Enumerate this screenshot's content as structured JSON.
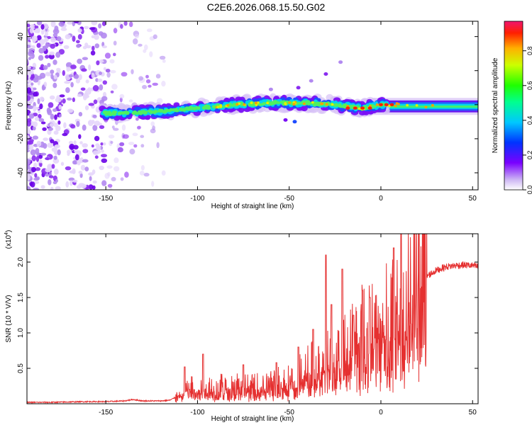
{
  "title": "C2E6.2026.068.15.50.G02",
  "chart_data": [
    {
      "type": "heatmap",
      "title": "C2E6.2026.068.15.50.G02",
      "xlabel": "Height of straight line (km)",
      "ylabel": "Frequency (Hz)",
      "xlim": [
        -193,
        53
      ],
      "ylim": [
        -50,
        49
      ],
      "xticks": [
        -150,
        -100,
        -50,
        0,
        50
      ],
      "yticks": [
        -40,
        -20,
        0,
        20,
        40
      ],
      "ridge": {
        "description": "Doppler trace centered near 0 Hz",
        "points": [
          [
            -150,
            -5
          ],
          [
            -140,
            -5
          ],
          [
            -120,
            -4
          ],
          [
            -100,
            -2
          ],
          [
            -80,
            0
          ],
          [
            -60,
            1
          ],
          [
            -40,
            1
          ],
          [
            -25,
            0
          ],
          [
            -10,
            -2
          ],
          [
            0,
            0
          ],
          [
            10,
            0
          ],
          [
            30,
            -1
          ],
          [
            53,
            -1
          ]
        ]
      },
      "colorbar": {
        "label": "Normalized spectral amplitude",
        "range": [
          0,
          0.97
        ],
        "ticks": [
          0.0,
          0.2,
          0.4,
          0.6,
          0.8
        ]
      }
    },
    {
      "type": "line",
      "xlabel": "Height of straight line (km)",
      "ylabel": "SNR (10 * V/V)",
      "yscale_label": "(x10",
      "yscale_exp": "4",
      "yscale_close": ")",
      "xlim": [
        -193,
        53
      ],
      "ylim": [
        0,
        2.4
      ],
      "xticks": [
        -150,
        -100,
        -50,
        0,
        50
      ],
      "yticks": [
        0.5,
        1.0,
        1.5,
        2.0
      ],
      "ytick_labels": [
        "0.5",
        "1.0",
        "1.5",
        "2.0"
      ],
      "series": [
        {
          "name": "SNR",
          "color": "#e53030",
          "x": [
            -193,
            -180,
            -160,
            -150,
            -140,
            -135,
            -130,
            -120,
            -115,
            -110,
            -105,
            -100,
            -90,
            -80,
            -70,
            -60,
            -55,
            -50,
            -45,
            -40,
            -35,
            -30,
            -25,
            -20,
            -15,
            -10,
            -5,
            0,
            5,
            10,
            15,
            20,
            25,
            30,
            35,
            40,
            45,
            50,
            53
          ],
          "y": [
            0.02,
            0.02,
            0.03,
            0.03,
            0.04,
            0.06,
            0.04,
            0.04,
            0.05,
            0.12,
            0.22,
            0.2,
            0.22,
            0.25,
            0.22,
            0.25,
            0.3,
            0.3,
            0.35,
            0.45,
            0.5,
            0.55,
            0.6,
            0.7,
            0.8,
            0.95,
            1.05,
            1.15,
            1.15,
            1.05,
            1.4,
            1.65,
            1.8,
            1.88,
            1.93,
            1.95,
            1.96,
            1.95,
            1.93
          ]
        }
      ],
      "spikes": [
        [
          -107,
          0.52
        ],
        [
          -97,
          0.7
        ],
        [
          -75,
          0.55
        ],
        [
          -57,
          0.58
        ],
        [
          -45,
          0.8
        ],
        [
          -37,
          1.05
        ],
        [
          -30,
          2.1
        ],
        [
          -27,
          1.4
        ],
        [
          -21,
          1.9
        ],
        [
          -15,
          1.25
        ],
        [
          -10,
          1.6
        ],
        [
          -6,
          1.5
        ],
        [
          7,
          2.2
        ],
        [
          11,
          2.42
        ]
      ]
    }
  ]
}
